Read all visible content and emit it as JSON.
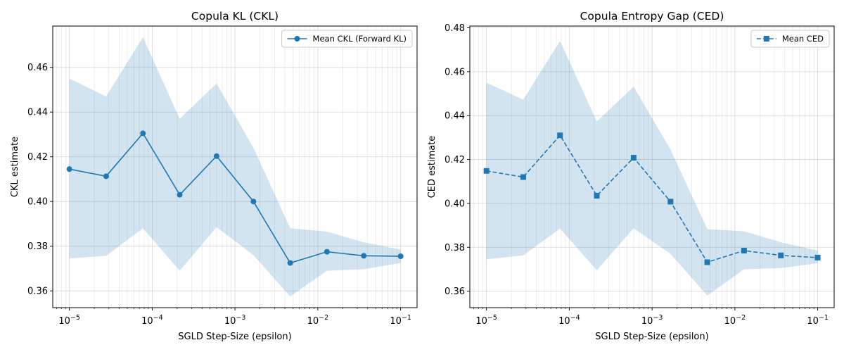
{
  "chart_data": [
    {
      "type": "line",
      "title": "Copula KL (CKL)",
      "xlabel": "SGLD Step-Size (epsilon)",
      "ylabel": "CKL estimate",
      "xscale": "log",
      "xlim": [
        6.3e-06,
        0.158
      ],
      "ylim": [
        0.3525,
        0.4785
      ],
      "yticks": [
        0.36,
        0.38,
        0.4,
        0.42,
        0.44,
        0.46
      ],
      "ytick_labels": [
        "0.36",
        "0.38",
        "0.40",
        "0.42",
        "0.44",
        "0.46"
      ],
      "xticks": [
        1e-05,
        0.0001,
        0.001,
        0.01,
        0.1
      ],
      "xtick_labels": [
        {
          "base": "10",
          "exp": "−5"
        },
        {
          "base": "10",
          "exp": "−4"
        },
        {
          "base": "10",
          "exp": "−3"
        },
        {
          "base": "10",
          "exp": "−2"
        },
        {
          "base": "10",
          "exp": "−1"
        }
      ],
      "grid": true,
      "legend_position": "top-right",
      "x": [
        1e-05,
        2.78e-05,
        7.74e-05,
        0.000215,
        0.000599,
        0.00167,
        0.00464,
        0.0129,
        0.0359,
        0.1
      ],
      "series": [
        {
          "name": "Mean CKL (Forward KL)",
          "values": [
            0.4145,
            0.4113,
            0.4305,
            0.403,
            0.4203,
            0.4,
            0.3725,
            0.3775,
            0.3757,
            0.3755
          ],
          "marker": "circle",
          "line": "solid",
          "color": "#1f77b4"
        }
      ],
      "band": {
        "lower": [
          0.3745,
          0.3757,
          0.388,
          0.369,
          0.3885,
          0.376,
          0.3575,
          0.369,
          0.3697,
          0.3725
        ],
        "upper": [
          0.455,
          0.447,
          0.4735,
          0.437,
          0.4528,
          0.424,
          0.388,
          0.3865,
          0.3817,
          0.3785
        ],
        "color": "#1f77b4"
      }
    },
    {
      "type": "line",
      "title": "Copula Entropy Gap (CED)",
      "xlabel": "SGLD Step-Size (epsilon)",
      "ylabel": "CED estimate",
      "xscale": "log",
      "xlim": [
        6.3e-06,
        0.158
      ],
      "ylim": [
        0.3525,
        0.4808
      ],
      "yticks": [
        0.36,
        0.38,
        0.4,
        0.42,
        0.44,
        0.46,
        0.48
      ],
      "ytick_labels": [
        "0.36",
        "0.38",
        "0.40",
        "0.42",
        "0.44",
        "0.46",
        "0.48"
      ],
      "xticks": [
        1e-05,
        0.0001,
        0.001,
        0.01,
        0.1
      ],
      "xtick_labels": [
        {
          "base": "10",
          "exp": "−5"
        },
        {
          "base": "10",
          "exp": "−4"
        },
        {
          "base": "10",
          "exp": "−3"
        },
        {
          "base": "10",
          "exp": "−2"
        },
        {
          "base": "10",
          "exp": "−1"
        }
      ],
      "grid": true,
      "legend_position": "top-right",
      "x": [
        1e-05,
        2.78e-05,
        7.74e-05,
        0.000215,
        0.000599,
        0.00167,
        0.00464,
        0.0129,
        0.0359,
        0.1
      ],
      "series": [
        {
          "name": "Mean CED",
          "values": [
            0.4148,
            0.412,
            0.431,
            0.4035,
            0.4208,
            0.4008,
            0.3732,
            0.3785,
            0.3763,
            0.3753
          ],
          "marker": "square",
          "line": "dashed",
          "color": "#1f77b4"
        }
      ],
      "band": {
        "lower": [
          0.3745,
          0.3763,
          0.3885,
          0.3695,
          0.3887,
          0.377,
          0.358,
          0.37,
          0.3705,
          0.3728
        ],
        "upper": [
          0.455,
          0.4473,
          0.474,
          0.4373,
          0.4532,
          0.4245,
          0.3883,
          0.3873,
          0.3823,
          0.3785
        ],
        "color": "#1f77b4"
      }
    }
  ]
}
